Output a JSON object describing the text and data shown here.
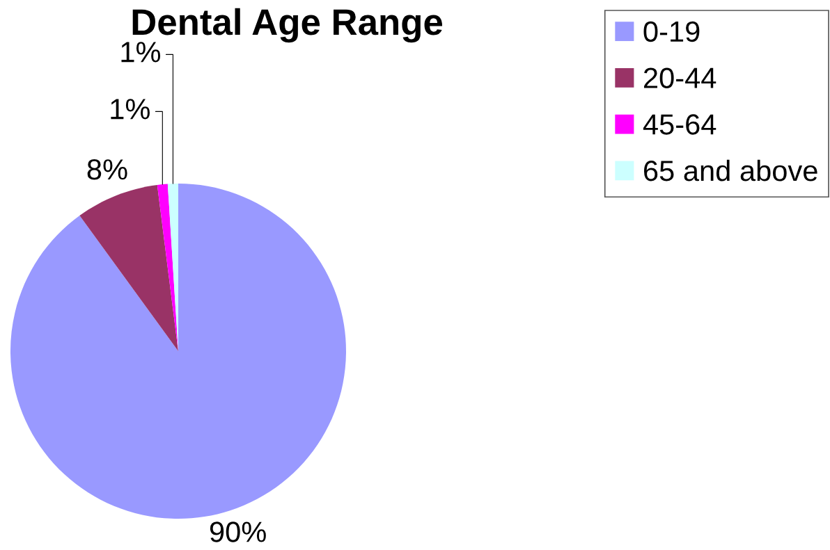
{
  "chart_data": {
    "type": "pie",
    "title": "Dental Age Range",
    "categories": [
      "0-19",
      "20-44",
      "45-64",
      "65 and above"
    ],
    "values": [
      90,
      8,
      1,
      1
    ],
    "colors": [
      "#9999ff",
      "#993366",
      "#ff00ff",
      "#ccffff"
    ],
    "value_labels": [
      "90%",
      "8%",
      "1%",
      "1%"
    ],
    "legend": "top right"
  }
}
